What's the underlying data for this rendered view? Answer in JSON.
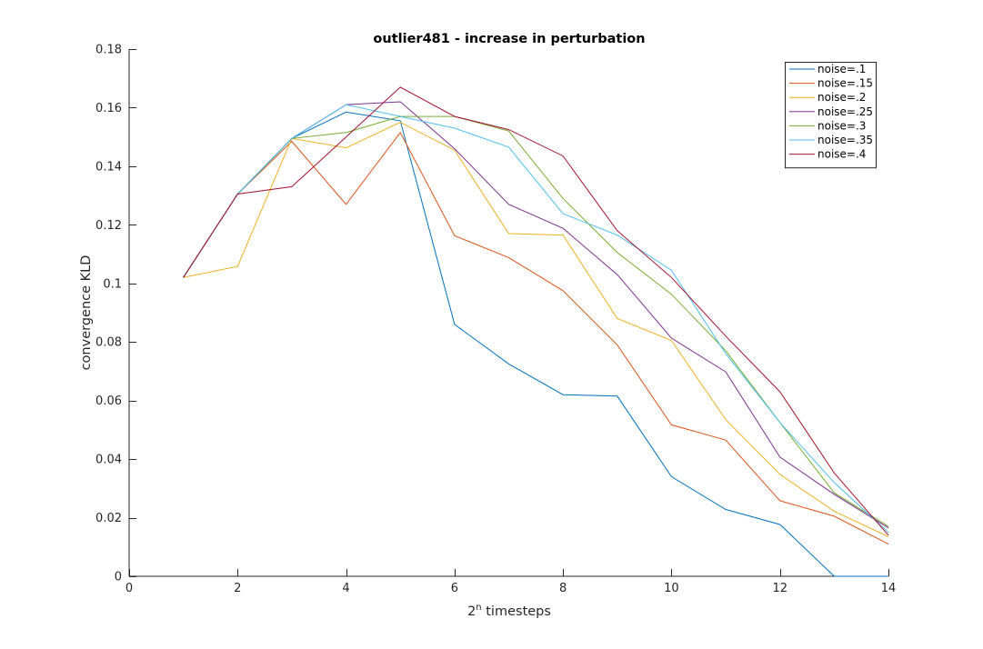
{
  "chart_data": {
    "type": "line",
    "title": "outlier481 - increase in perturbation",
    "xlabel": "2",
    "xlabel_superscript": "n",
    "xlabel_suffix": " timesteps",
    "ylabel": "convergence KLD",
    "xlim": [
      0,
      14
    ],
    "ylim": [
      0,
      0.18
    ],
    "xticks": [
      0,
      2,
      4,
      6,
      8,
      10,
      12,
      14
    ],
    "xtick_labels": [
      "0",
      "2",
      "4",
      "6",
      "8",
      "10",
      "12",
      "14"
    ],
    "yticks": [
      0,
      0.02,
      0.04,
      0.06,
      0.08,
      0.1,
      0.12,
      0.14,
      0.16,
      0.18
    ],
    "ytick_labels": [
      "0",
      "0.02",
      "0.04",
      "0.06",
      "0.08",
      "0.1",
      "0.12",
      "0.14",
      "0.16",
      "0.18"
    ],
    "grid": false,
    "legend_position": "top-right",
    "x": [
      1,
      2,
      3,
      4,
      5,
      6,
      7,
      8,
      9,
      10,
      11,
      12,
      13,
      14
    ],
    "series": [
      {
        "name": "noise=.1",
        "color": "#0072BD",
        "values": [
          0.102,
          0.1305,
          0.1495,
          0.1585,
          0.1555,
          0.086,
          0.0725,
          0.062,
          0.0615,
          0.034,
          0.0228,
          0.0177,
          0.0,
          0.0
        ]
      },
      {
        "name": "noise=.15",
        "color": "#D95319",
        "values": [
          0.102,
          0.1305,
          0.1485,
          0.127,
          0.1515,
          0.1163,
          0.1088,
          0.0975,
          0.079,
          0.0517,
          0.0465,
          0.0258,
          0.0205,
          0.011
        ]
      },
      {
        "name": "noise=.2",
        "color": "#EDB120",
        "values": [
          0.102,
          0.1058,
          0.1495,
          0.1463,
          0.155,
          0.1455,
          0.117,
          0.1165,
          0.088,
          0.0805,
          0.0535,
          0.0348,
          0.0222,
          0.0135
        ]
      },
      {
        "name": "noise=.25",
        "color": "#7E2F8E",
        "values": [
          0.102,
          0.1305,
          0.1495,
          0.161,
          0.162,
          0.146,
          0.127,
          0.1188,
          0.103,
          0.0813,
          0.0698,
          0.0407,
          0.028,
          0.0165
        ]
      },
      {
        "name": "noise=.3",
        "color": "#77AC30",
        "values": [
          0.102,
          0.1305,
          0.1495,
          0.1515,
          0.157,
          0.157,
          0.152,
          0.129,
          0.1105,
          0.0963,
          0.077,
          0.0525,
          0.0285,
          0.017
        ]
      },
      {
        "name": "noise=.35",
        "color": "#4DBEEE",
        "values": [
          0.102,
          0.1305,
          0.1495,
          0.161,
          0.157,
          0.153,
          0.1465,
          0.1238,
          0.1165,
          0.1045,
          0.076,
          0.0525,
          0.032,
          0.015
        ]
      },
      {
        "name": "noise=.4",
        "color": "#A2142F",
        "values": [
          0.102,
          0.1305,
          0.133,
          0.15,
          0.167,
          0.157,
          0.1525,
          0.1435,
          0.118,
          0.102,
          0.082,
          0.063,
          0.0353,
          0.014
        ]
      }
    ]
  }
}
